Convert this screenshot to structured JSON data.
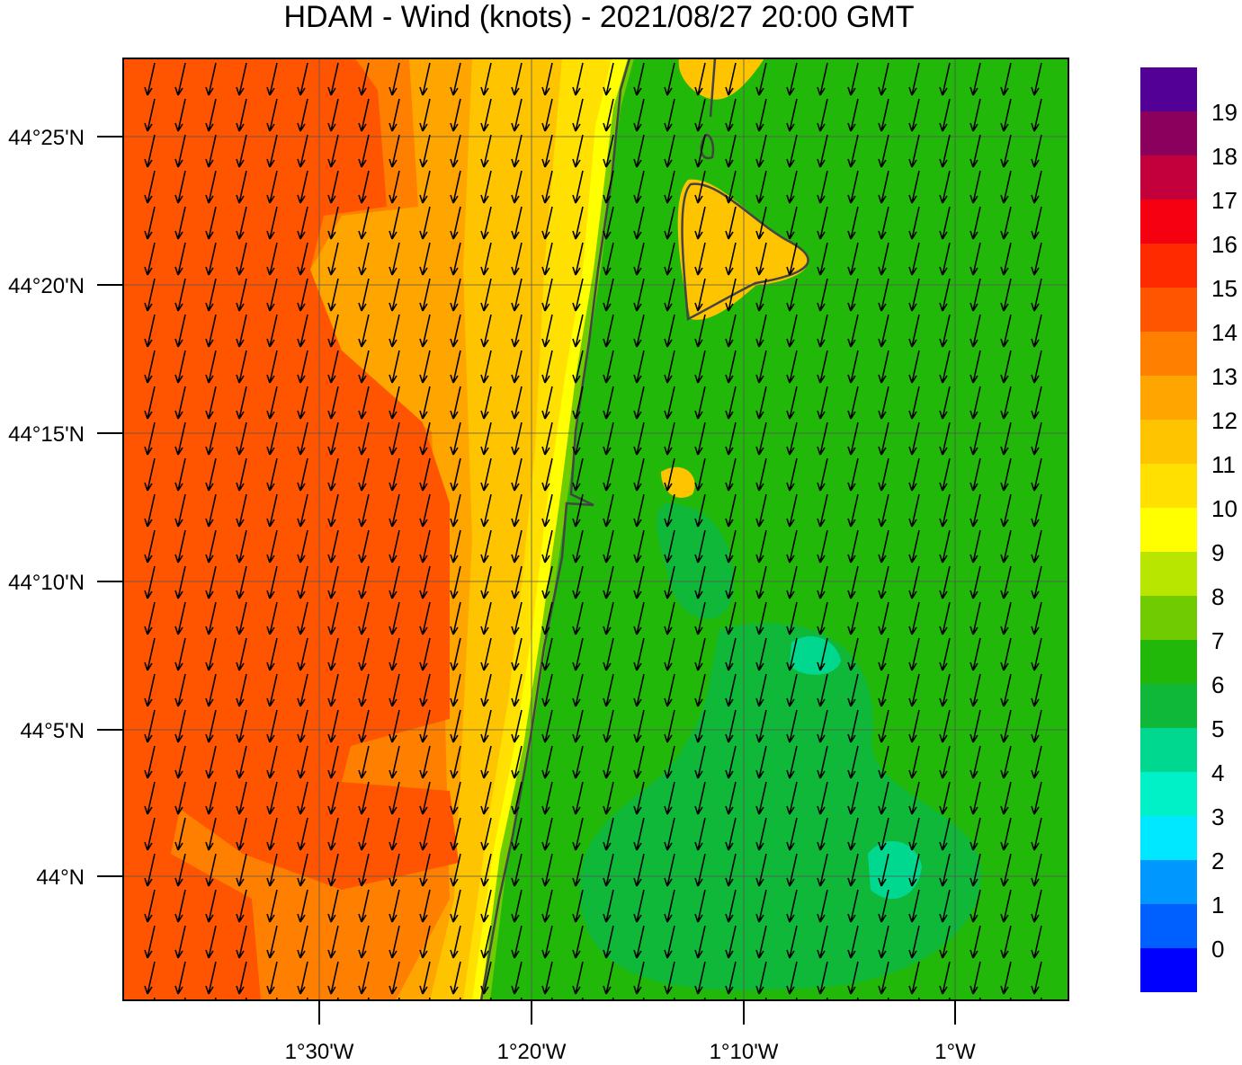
{
  "title": "HDAM - Wind (knots)  -  2021/08/27  20:00 GMT",
  "y_axis": {
    "ticks": [
      "44°25'N",
      "44°20'N",
      "44°15'N",
      "44°10'N",
      "44°5'N",
      "44°N"
    ]
  },
  "x_axis": {
    "ticks": [
      "1°30'W",
      "1°20'W",
      "1°10'W",
      "1°W"
    ]
  },
  "colorbar": {
    "labels": [
      "19",
      "18",
      "17",
      "16",
      "15",
      "14",
      "13",
      "12",
      "11",
      "10",
      "9",
      "8",
      "7",
      "6",
      "5",
      "4",
      "3",
      "2",
      "1",
      "0"
    ],
    "colors": [
      "#520096",
      "#8a005c",
      "#c4003c",
      "#f50010",
      "#ff2a00",
      "#ff5500",
      "#ff8000",
      "#ffa500",
      "#ffc400",
      "#ffe000",
      "#ffff00",
      "#b8e600",
      "#70cc00",
      "#22b80a",
      "#10b83a",
      "#00d890",
      "#00f0c8",
      "#00e8ff",
      "#0098ff",
      "#0060ff",
      "#0000ff"
    ]
  }
}
